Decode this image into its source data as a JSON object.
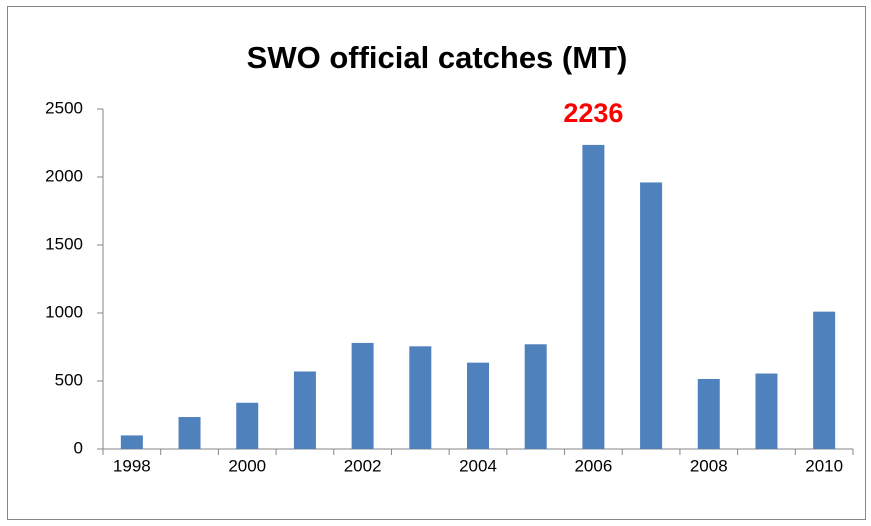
{
  "chart_data": {
    "type": "bar",
    "title": "SWO official catches (MT)",
    "categories": [
      "1998",
      null,
      "2000",
      null,
      "2002",
      null,
      "2004",
      null,
      "2006",
      null,
      "2008",
      null,
      "2010"
    ],
    "values": [
      100,
      235,
      340,
      570,
      780,
      755,
      635,
      770,
      2236,
      1960,
      515,
      555,
      1010
    ],
    "value_labels": [
      null,
      null,
      null,
      null,
      null,
      null,
      null,
      null,
      "2236",
      null,
      null,
      null,
      null
    ],
    "value_label_color": "#ff0000",
    "color": "#4f81bd",
    "ylim": [
      0,
      2500
    ],
    "yticks": [
      0,
      500,
      1000,
      1500,
      2000,
      2500
    ],
    "grid": false
  }
}
